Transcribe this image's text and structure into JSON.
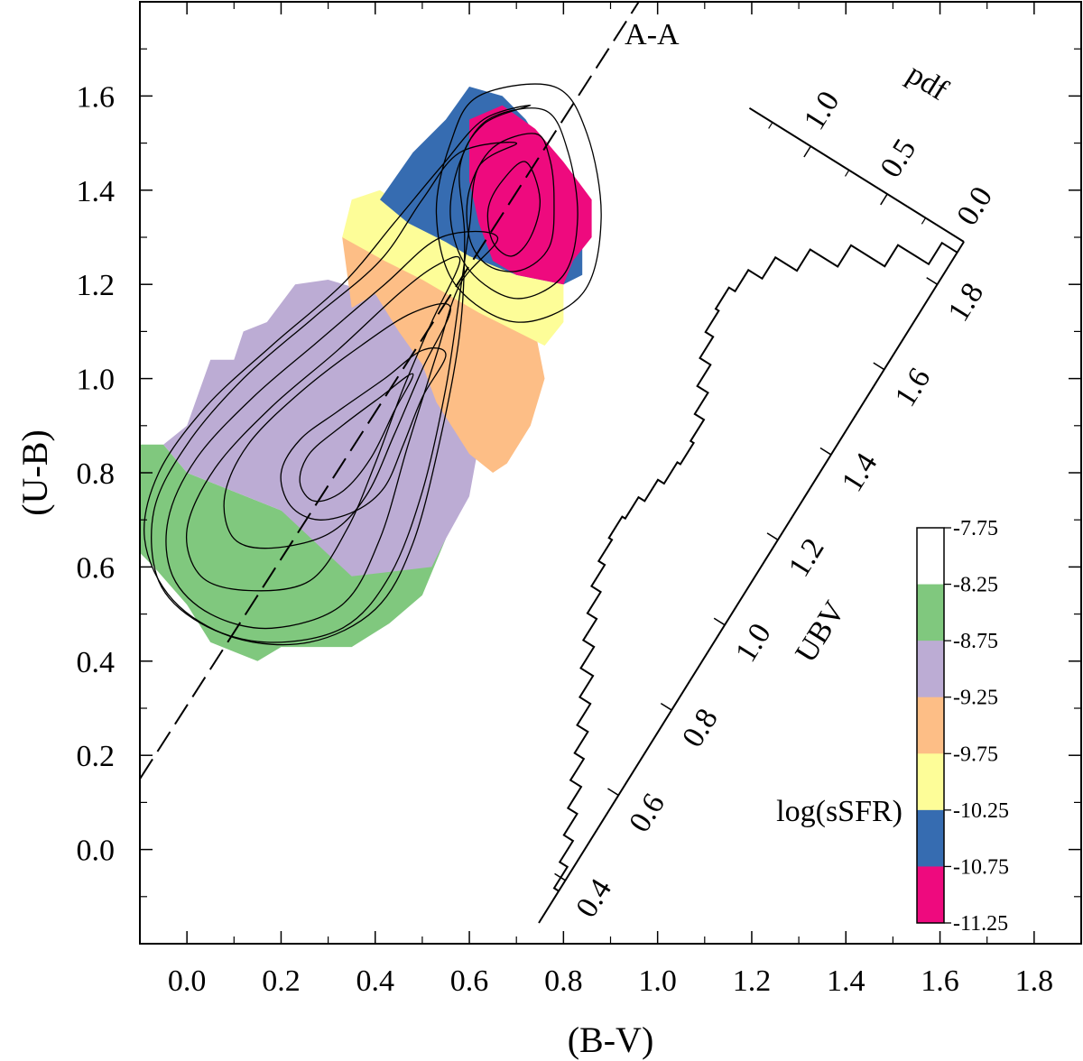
{
  "chart_data": {
    "type": "heatmap",
    "xlabel": "(B-V)",
    "ylabel": "(U-B)",
    "xlim": [
      -0.1,
      1.9
    ],
    "ylim": [
      -0.2,
      1.8
    ],
    "x_ticks": [
      "0.0",
      "0.2",
      "0.4",
      "0.6",
      "0.8",
      "1.0",
      "1.2",
      "1.4",
      "1.6",
      "1.8"
    ],
    "y_ticks": [
      "0.0",
      "0.2",
      "0.4",
      "0.6",
      "0.8",
      "1.0",
      "1.2",
      "1.4",
      "1.6"
    ],
    "colorbar": {
      "title": "log(sSFR)",
      "tick_labels": [
        "-7.75",
        "-8.25",
        "-8.75",
        "-9.25",
        "-9.75",
        "-10.25",
        "-10.75",
        "-11.25"
      ],
      "colors": [
        "#ffffff",
        "#80c87e",
        "#bcacd4",
        "#fdbe86",
        "#fdfd98",
        "#366cb1",
        "#ee0a7e"
      ]
    },
    "regions": [
      {
        "log_ssfr": "-8.25 to -8.75",
        "color": "#80c87e",
        "polygon": [
          [
            -0.1,
            0.86
          ],
          [
            -0.05,
            0.86
          ],
          [
            0.0,
            0.8
          ],
          [
            0.2,
            0.72
          ],
          [
            0.35,
            0.62
          ],
          [
            0.55,
            0.66
          ],
          [
            0.5,
            0.54
          ],
          [
            0.43,
            0.48
          ],
          [
            0.35,
            0.43
          ],
          [
            0.2,
            0.43
          ],
          [
            0.15,
            0.4
          ],
          [
            0.05,
            0.44
          ],
          [
            0.0,
            0.52
          ],
          [
            -0.07,
            0.6
          ],
          [
            -0.1,
            0.63
          ]
        ]
      },
      {
        "log_ssfr": "-8.75 to -9.25",
        "color": "#bcacd4",
        "polygon": [
          [
            -0.05,
            0.86
          ],
          [
            0.0,
            0.9
          ],
          [
            0.05,
            1.04
          ],
          [
            0.1,
            1.04
          ],
          [
            0.12,
            1.1
          ],
          [
            0.17,
            1.12
          ],
          [
            0.23,
            1.2
          ],
          [
            0.3,
            1.21
          ],
          [
            0.4,
            1.18
          ],
          [
            0.48,
            1.08
          ],
          [
            0.55,
            0.94
          ],
          [
            0.62,
            0.86
          ],
          [
            0.6,
            0.75
          ],
          [
            0.55,
            0.66
          ],
          [
            0.52,
            0.6
          ],
          [
            0.35,
            0.58
          ],
          [
            0.2,
            0.72
          ],
          [
            0.0,
            0.8
          ]
        ]
      },
      {
        "log_ssfr": "-9.25 to -9.75",
        "color": "#fdbe86",
        "polygon": [
          [
            0.35,
            1.15
          ],
          [
            0.33,
            1.3
          ],
          [
            0.38,
            1.34
          ],
          [
            0.5,
            1.25
          ],
          [
            0.62,
            1.2
          ],
          [
            0.74,
            1.1
          ],
          [
            0.76,
            1.0
          ],
          [
            0.73,
            0.9
          ],
          [
            0.68,
            0.82
          ],
          [
            0.65,
            0.8
          ],
          [
            0.6,
            0.84
          ],
          [
            0.53,
            0.95
          ],
          [
            0.5,
            1.03
          ],
          [
            0.45,
            1.1
          ],
          [
            0.4,
            1.18
          ]
        ]
      },
      {
        "log_ssfr": "-9.75 to -10.25",
        "color": "#fdfd98",
        "polygon": [
          [
            0.33,
            1.3
          ],
          [
            0.35,
            1.38
          ],
          [
            0.41,
            1.4
          ],
          [
            0.48,
            1.35
          ],
          [
            0.58,
            1.28
          ],
          [
            0.7,
            1.22
          ],
          [
            0.8,
            1.2
          ],
          [
            0.8,
            1.12
          ],
          [
            0.76,
            1.07
          ],
          [
            0.7,
            1.1
          ],
          [
            0.62,
            1.14
          ],
          [
            0.5,
            1.21
          ],
          [
            0.42,
            1.25
          ]
        ]
      },
      {
        "log_ssfr": "-10.25 to -10.75",
        "color": "#366cb1",
        "polygon": [
          [
            0.41,
            1.38
          ],
          [
            0.48,
            1.48
          ],
          [
            0.55,
            1.55
          ],
          [
            0.6,
            1.62
          ],
          [
            0.67,
            1.6
          ],
          [
            0.72,
            1.55
          ],
          [
            0.78,
            1.45
          ],
          [
            0.84,
            1.32
          ],
          [
            0.84,
            1.22
          ],
          [
            0.8,
            1.2
          ],
          [
            0.7,
            1.22
          ],
          [
            0.6,
            1.26
          ],
          [
            0.55,
            1.29
          ],
          [
            0.47,
            1.33
          ]
        ]
      },
      {
        "log_ssfr": "-10.75 to -11.25",
        "color": "#ee0a7e",
        "polygon": [
          [
            0.6,
            1.55
          ],
          [
            0.67,
            1.58
          ],
          [
            0.74,
            1.53
          ],
          [
            0.8,
            1.46
          ],
          [
            0.86,
            1.38
          ],
          [
            0.86,
            1.3
          ],
          [
            0.82,
            1.25
          ],
          [
            0.8,
            1.2
          ],
          [
            0.7,
            1.22
          ],
          [
            0.65,
            1.25
          ],
          [
            0.62,
            1.33
          ],
          [
            0.6,
            1.42
          ]
        ]
      }
    ],
    "contours": [
      {
        "level": 1,
        "points": [
          [
            0.55,
            1.05
          ],
          [
            0.5,
            0.96
          ],
          [
            0.46,
            0.86
          ],
          [
            0.42,
            0.77
          ],
          [
            0.36,
            0.72
          ],
          [
            0.28,
            0.7
          ],
          [
            0.22,
            0.73
          ],
          [
            0.2,
            0.8
          ],
          [
            0.24,
            0.87
          ],
          [
            0.32,
            0.93
          ],
          [
            0.42,
            1.0
          ],
          [
            0.5,
            1.06
          ]
        ]
      },
      {
        "level": 2,
        "points": [
          [
            0.48,
            1.01
          ],
          [
            0.44,
            0.93
          ],
          [
            0.39,
            0.83
          ],
          [
            0.33,
            0.76
          ],
          [
            0.27,
            0.74
          ],
          [
            0.24,
            0.78
          ],
          [
            0.26,
            0.84
          ],
          [
            0.33,
            0.9
          ],
          [
            0.41,
            0.96
          ]
        ]
      },
      {
        "level": 3,
        "points": [
          [
            0.56,
            1.15
          ],
          [
            0.5,
            1.02
          ],
          [
            0.44,
            0.88
          ],
          [
            0.38,
            0.75
          ],
          [
            0.3,
            0.67
          ],
          [
            0.18,
            0.64
          ],
          [
            0.1,
            0.66
          ],
          [
            0.08,
            0.75
          ],
          [
            0.13,
            0.86
          ],
          [
            0.24,
            0.97
          ],
          [
            0.37,
            1.07
          ],
          [
            0.48,
            1.14
          ]
        ]
      },
      {
        "level": 4,
        "points": [
          [
            0.58,
            1.25
          ],
          [
            0.52,
            1.12
          ],
          [
            0.46,
            0.98
          ],
          [
            0.4,
            0.82
          ],
          [
            0.34,
            0.68
          ],
          [
            0.26,
            0.57
          ],
          [
            0.13,
            0.55
          ],
          [
            0.03,
            0.58
          ],
          [
            0.0,
            0.68
          ],
          [
            0.06,
            0.81
          ],
          [
            0.18,
            0.94
          ],
          [
            0.32,
            1.06
          ],
          [
            0.45,
            1.18
          ],
          [
            0.53,
            1.24
          ]
        ]
      },
      {
        "level": 5,
        "points": [
          [
            0.66,
            1.3
          ],
          [
            0.58,
            1.2
          ],
          [
            0.53,
            1.05
          ],
          [
            0.47,
            0.86
          ],
          [
            0.41,
            0.66
          ],
          [
            0.33,
            0.52
          ],
          [
            0.18,
            0.47
          ],
          [
            0.05,
            0.5
          ],
          [
            -0.03,
            0.58
          ],
          [
            -0.04,
            0.7
          ],
          [
            0.02,
            0.83
          ],
          [
            0.14,
            0.96
          ],
          [
            0.28,
            1.08
          ],
          [
            0.42,
            1.2
          ],
          [
            0.54,
            1.3
          ]
        ]
      },
      {
        "level": 6,
        "points": [
          [
            0.7,
            1.5
          ],
          [
            0.62,
            1.45
          ],
          [
            0.6,
            1.32
          ],
          [
            0.58,
            1.18
          ],
          [
            0.55,
            0.98
          ],
          [
            0.5,
            0.76
          ],
          [
            0.43,
            0.58
          ],
          [
            0.33,
            0.47
          ],
          [
            0.17,
            0.44
          ],
          [
            0.03,
            0.48
          ],
          [
            -0.06,
            0.57
          ],
          [
            -0.07,
            0.72
          ],
          [
            0.0,
            0.86
          ],
          [
            0.12,
            1.0
          ],
          [
            0.27,
            1.13
          ],
          [
            0.41,
            1.25
          ],
          [
            0.5,
            1.38
          ],
          [
            0.58,
            1.48
          ]
        ]
      },
      {
        "level": 7,
        "points": [
          [
            0.73,
            1.58
          ],
          [
            0.63,
            1.54
          ],
          [
            0.58,
            1.45
          ],
          [
            0.59,
            1.3
          ],
          [
            0.58,
            1.1
          ],
          [
            0.54,
            0.88
          ],
          [
            0.48,
            0.65
          ],
          [
            0.4,
            0.51
          ],
          [
            0.26,
            0.44
          ],
          [
            0.1,
            0.45
          ],
          [
            -0.03,
            0.53
          ],
          [
            -0.09,
            0.66
          ],
          [
            -0.06,
            0.8
          ],
          [
            0.04,
            0.94
          ],
          [
            0.18,
            1.07
          ],
          [
            0.33,
            1.2
          ],
          [
            0.44,
            1.33
          ],
          [
            0.54,
            1.45
          ],
          [
            0.63,
            1.55
          ]
        ]
      },
      {
        "level": 8,
        "points": [
          [
            0.72,
            1.46
          ],
          [
            0.67,
            1.42
          ],
          [
            0.64,
            1.36
          ],
          [
            0.65,
            1.29
          ],
          [
            0.69,
            1.26
          ],
          [
            0.73,
            1.3
          ],
          [
            0.75,
            1.38
          ]
        ]
      },
      {
        "level": 9,
        "points": [
          [
            0.74,
            1.52
          ],
          [
            0.65,
            1.49
          ],
          [
            0.6,
            1.4
          ],
          [
            0.6,
            1.3
          ],
          [
            0.64,
            1.24
          ],
          [
            0.71,
            1.23
          ],
          [
            0.77,
            1.28
          ],
          [
            0.78,
            1.38
          ],
          [
            0.77,
            1.47
          ]
        ]
      },
      {
        "level": 10,
        "points": [
          [
            0.76,
            1.57
          ],
          [
            0.64,
            1.55
          ],
          [
            0.58,
            1.46
          ],
          [
            0.56,
            1.34
          ],
          [
            0.6,
            1.23
          ],
          [
            0.7,
            1.17
          ],
          [
            0.8,
            1.22
          ],
          [
            0.83,
            1.34
          ],
          [
            0.81,
            1.48
          ]
        ]
      },
      {
        "level": 11,
        "points": [
          [
            0.78,
            1.62
          ],
          [
            0.62,
            1.6
          ],
          [
            0.56,
            1.5
          ],
          [
            0.53,
            1.35
          ],
          [
            0.57,
            1.2
          ],
          [
            0.7,
            1.12
          ],
          [
            0.84,
            1.18
          ],
          [
            0.88,
            1.34
          ],
          [
            0.85,
            1.52
          ]
        ]
      }
    ],
    "reference_line": {
      "label": "A-A",
      "style": "dashed",
      "x": [
        -0.1,
        0.96
      ],
      "y": [
        0.15,
        1.8
      ]
    },
    "rotated_histogram": {
      "axis_label": "UBV",
      "axis_tick_labels": [
        "0.4",
        "0.6",
        "0.8",
        "1.0",
        "1.2",
        "1.4",
        "1.6",
        "1.8"
      ],
      "pdf_label": "pdf",
      "pdf_tick_labels": [
        "0.0",
        "0.5",
        "1.0"
      ],
      "ubv_values": [
        0.4,
        0.45,
        0.5,
        0.55,
        0.6,
        0.65,
        0.7,
        0.75,
        0.8,
        0.85,
        0.9,
        0.95,
        1.0,
        1.05,
        1.1,
        1.15,
        1.2,
        1.25,
        1.3,
        1.35,
        1.4,
        1.45,
        1.5,
        1.55,
        1.6,
        1.65,
        1.7,
        1.75,
        1.8,
        1.85
      ],
      "pdf_values": [
        0.03,
        0.08,
        0.14,
        0.2,
        0.27,
        0.33,
        0.4,
        0.47,
        0.55,
        0.62,
        0.68,
        0.74,
        0.78,
        0.8,
        0.78,
        0.74,
        0.7,
        0.68,
        0.7,
        0.76,
        0.83,
        0.9,
        0.95,
        0.97,
        0.93,
        0.84,
        0.7,
        0.52,
        0.3,
        0.1
      ]
    }
  }
}
